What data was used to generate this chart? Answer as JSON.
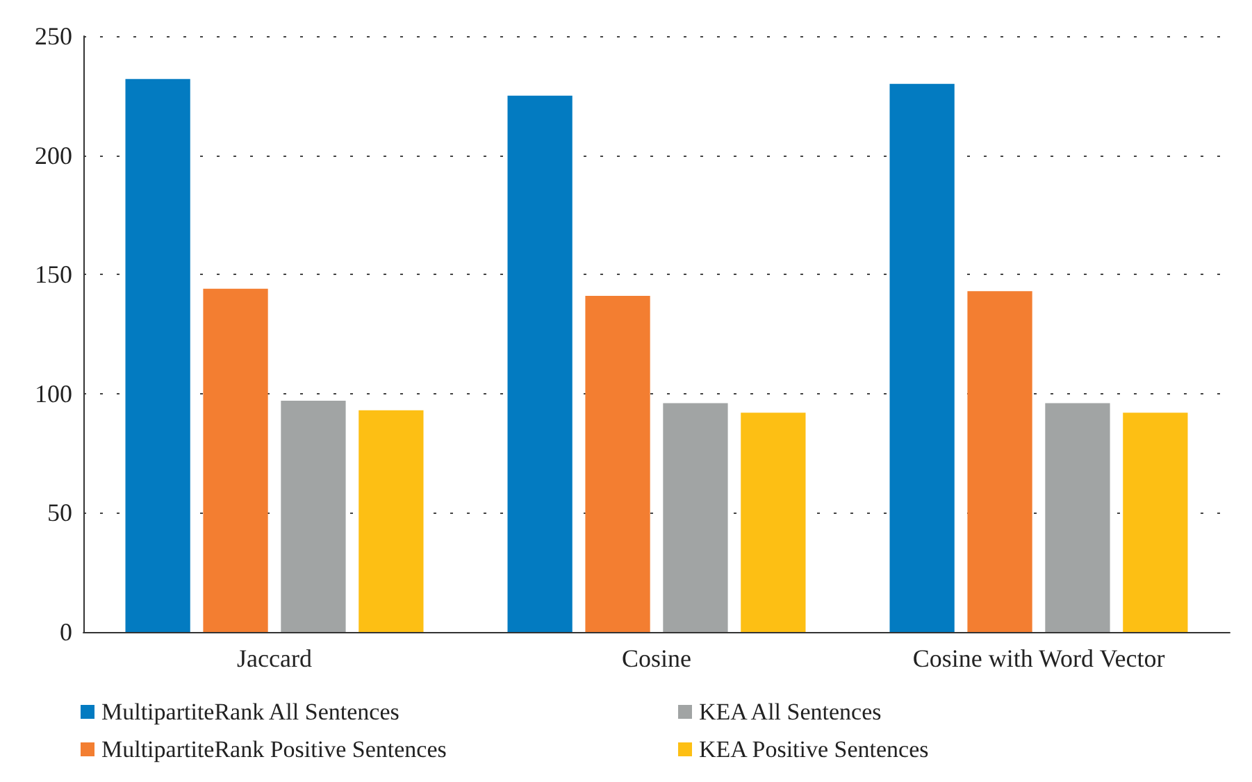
{
  "chart_data": {
    "type": "bar",
    "categories": [
      "Jaccard",
      "Cosine",
      "Cosine with Word Vector"
    ],
    "series": [
      {
        "name": "MultipartiteRank All Sentences",
        "color": "#037bc1",
        "values": [
          232,
          225,
          230
        ]
      },
      {
        "name": "MultipartiteRank Positive Sentences",
        "color": "#f37e31",
        "values": [
          144,
          141,
          143
        ]
      },
      {
        "name": "KEA All Sentences",
        "color": "#a1a4a4",
        "values": [
          97,
          96,
          96
        ]
      },
      {
        "name": "KEA Positive Sentences",
        "color": "#fdbf14",
        "values": [
          93,
          92,
          92
        ]
      }
    ],
    "ylim": [
      0,
      250
    ],
    "yticks": [
      0,
      50,
      100,
      150,
      200,
      250
    ],
    "grid": "y",
    "legend": "bottom"
  }
}
